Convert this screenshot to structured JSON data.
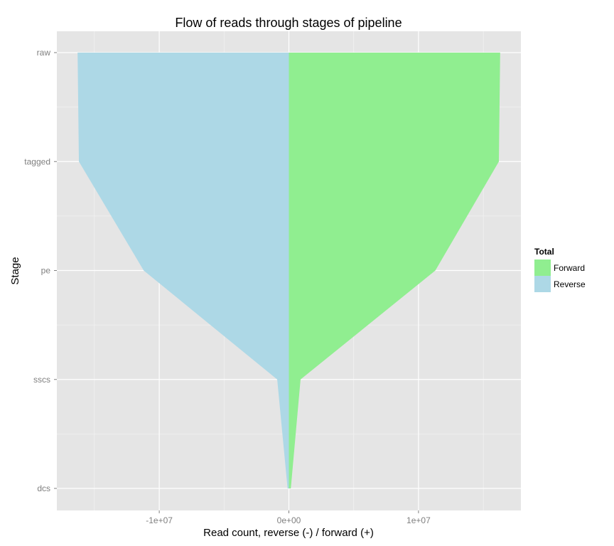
{
  "chart_data": {
    "type": "area",
    "title": "Flow of reads through stages of pipeline",
    "xlabel": "Read count, reverse (-) / forward (+)",
    "ylabel": "Stage",
    "categories": [
      "raw",
      "tagged",
      "pe",
      "sscs",
      "dcs"
    ],
    "x_ticks": [
      -10000000,
      0,
      10000000
    ],
    "x_tick_labels": [
      "-1e+07",
      "0e+00",
      "1e+07"
    ],
    "xlim": [
      -17900000,
      17900000
    ],
    "grid": true,
    "legend": {
      "title": "Total",
      "placement": "right",
      "entries": [
        {
          "name": "Forward",
          "color": "#90ee90"
        },
        {
          "name": "Reverse",
          "color": "#add8e6"
        }
      ]
    },
    "series": [
      {
        "name": "Forward",
        "color": "#90ee90",
        "values": [
          16300000,
          16200000,
          11300000,
          900000,
          150000
        ]
      },
      {
        "name": "Reverse",
        "color": "#add8e6",
        "values": [
          -16300000,
          -16200000,
          -11200000,
          -900000,
          -100000
        ]
      }
    ],
    "colors": {
      "panel_background": "#e5e5e5",
      "grid_major": "#ffffff",
      "grid_minor": "#f2f2f2"
    }
  }
}
